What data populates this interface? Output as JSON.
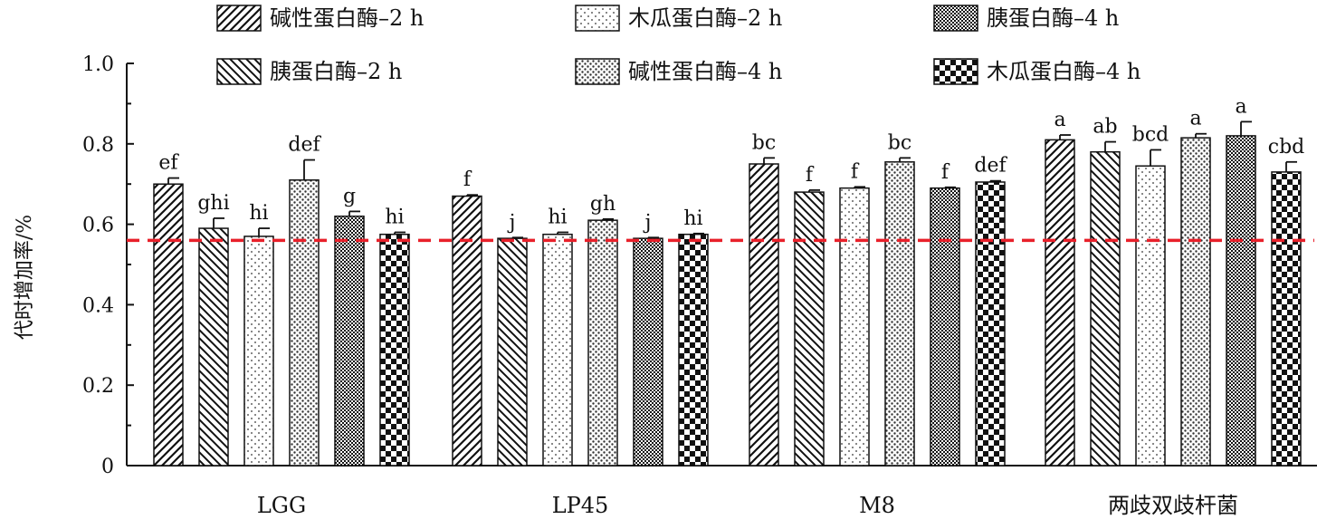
{
  "chart_data": {
    "type": "bar",
    "title": "",
    "xlabel": "",
    "ylabel": "代时增加率/%",
    "ylim": [
      0,
      1.0
    ],
    "yticks": [
      0,
      0.2,
      0.4,
      0.6,
      0.8,
      1.0
    ],
    "ytick_labels": [
      "0",
      "0.2",
      "0.4",
      "0.6",
      "0.8",
      "1.0"
    ],
    "categories": [
      "LGG",
      "LP45",
      "M8",
      "两歧双歧杆菌"
    ],
    "reference_line": {
      "y": 0.56,
      "color": "#e8202a",
      "style": "dashed"
    },
    "legend_position": "top",
    "series": [
      {
        "name": "碱性蛋白酶–2 h",
        "pattern": "diag-hatch",
        "values": [
          0.7,
          0.67,
          0.75,
          0.81
        ],
        "errors": [
          0.015,
          0.003,
          0.015,
          0.012
        ],
        "labels": [
          "ef",
          "f",
          "bc",
          "a"
        ]
      },
      {
        "name": "胰蛋白酶–2 h",
        "pattern": "back-diag-hatch",
        "values": [
          0.59,
          0.565,
          0.68,
          0.78
        ],
        "errors": [
          0.025,
          0.002,
          0.005,
          0.025
        ],
        "labels": [
          "ghi",
          "j",
          "f",
          "ab"
        ]
      },
      {
        "name": "木瓜蛋白酶–2 h",
        "pattern": "sparse-dots",
        "values": [
          0.57,
          0.575,
          0.69,
          0.745
        ],
        "errors": [
          0.02,
          0.005,
          0.003,
          0.04
        ],
        "labels": [
          "hi",
          "hi",
          "f",
          "bcd"
        ]
      },
      {
        "name": "碱性蛋白酶–4 h",
        "pattern": "dense-dots",
        "values": [
          0.71,
          0.61,
          0.755,
          0.815
        ],
        "errors": [
          0.05,
          0.003,
          0.01,
          0.01
        ],
        "labels": [
          "def",
          "gh",
          "bc",
          "a"
        ]
      },
      {
        "name": "胰蛋白酶–4 h",
        "pattern": "fine-check",
        "values": [
          0.62,
          0.565,
          0.69,
          0.82
        ],
        "errors": [
          0.012,
          0.002,
          0.002,
          0.035
        ],
        "labels": [
          "g",
          "j",
          "f",
          "a"
        ]
      },
      {
        "name": "木瓜蛋白酶–4 h",
        "pattern": "coarse-check",
        "values": [
          0.575,
          0.575,
          0.705,
          0.73
        ],
        "errors": [
          0.005,
          0.002,
          0.003,
          0.025
        ],
        "labels": [
          "hi",
          "hi",
          "def",
          "cbd"
        ]
      }
    ]
  }
}
